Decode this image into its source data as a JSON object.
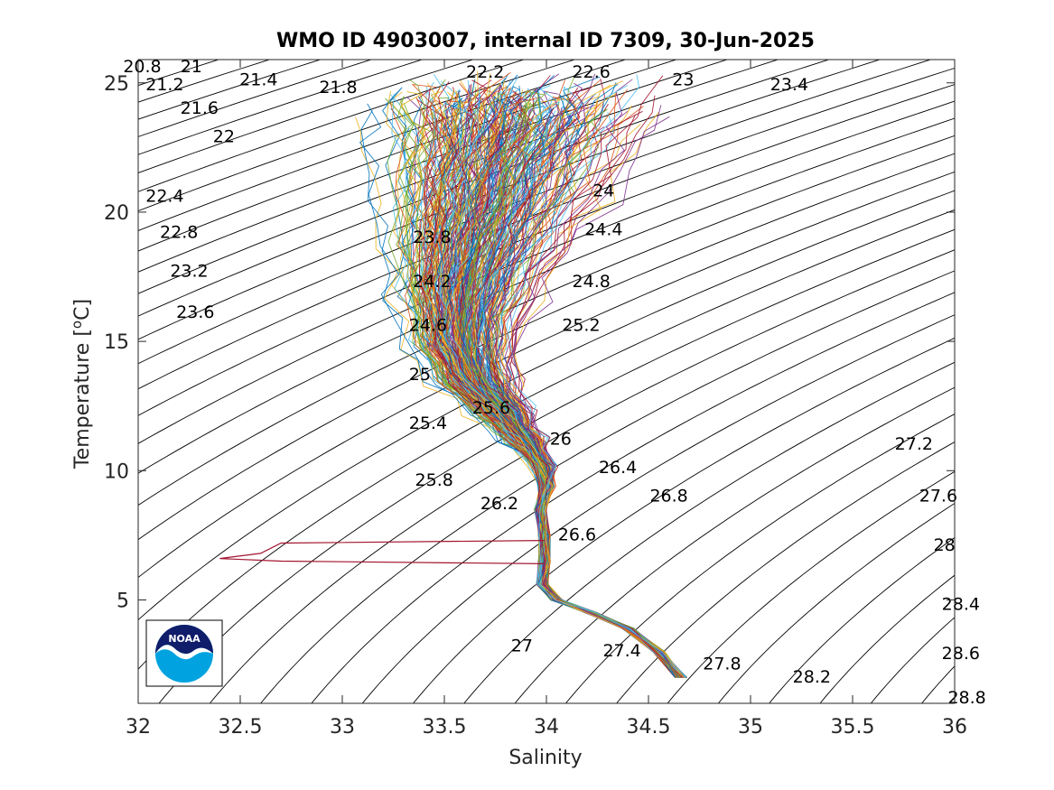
{
  "chart_data": {
    "type": "scatter",
    "title": "WMO ID 4903007, internal ID 7309, 30-Jun-2025",
    "xlabel": "Salinity",
    "ylabel": "Temperature [°C]",
    "ylabel_prefix": "Temperature [",
    "ylabel_sup": "o",
    "ylabel_suffix": "C]",
    "xlim": [
      32,
      36
    ],
    "ylim": [
      1,
      25.9
    ],
    "xticks": [
      32,
      32.5,
      33,
      33.5,
      34,
      34.5,
      35,
      35.5,
      36
    ],
    "yticks": [
      5,
      10,
      15,
      20,
      25
    ],
    "xtick_labels": [
      "32",
      "32.5",
      "33",
      "33.5",
      "34",
      "34.5",
      "35",
      "35.5",
      "36"
    ],
    "ytick_labels": [
      "5",
      "10",
      "15",
      "20",
      "25"
    ],
    "grid": false,
    "density_contours": {
      "values": [
        20.8,
        21,
        21.2,
        21.4,
        21.6,
        21.8,
        22,
        22.2,
        22.4,
        22.6,
        22.8,
        23,
        23.2,
        23.4,
        23.6,
        23.8,
        24,
        24.2,
        24.4,
        24.6,
        24.8,
        25,
        25.2,
        25.4,
        25.6,
        25.8,
        26,
        26.2,
        26.4,
        26.6,
        26.8,
        27,
        27.2,
        27.4,
        27.6,
        27.8,
        28,
        28.2,
        28.4,
        28.6,
        28.8
      ],
      "labels": [
        {
          "text": "20.8",
          "s": 32.02,
          "t": 25.6
        },
        {
          "text": "21",
          "s": 32.26,
          "t": 25.6
        },
        {
          "text": "21.2",
          "s": 32.13,
          "t": 24.9
        },
        {
          "text": "21.4",
          "s": 32.59,
          "t": 25.1
        },
        {
          "text": "21.6",
          "s": 32.3,
          "t": 24.0
        },
        {
          "text": "21.8",
          "s": 32.98,
          "t": 24.8
        },
        {
          "text": "22",
          "s": 32.42,
          "t": 22.9
        },
        {
          "text": "22.2",
          "s": 33.7,
          "t": 25.4
        },
        {
          "text": "22.4",
          "s": 32.13,
          "t": 20.6
        },
        {
          "text": "22.6",
          "s": 34.22,
          "t": 25.4
        },
        {
          "text": "22.8",
          "s": 32.2,
          "t": 19.2
        },
        {
          "text": "23",
          "s": 34.67,
          "t": 25.1
        },
        {
          "text": "23.2",
          "s": 32.25,
          "t": 17.7
        },
        {
          "text": "23.4",
          "s": 35.19,
          "t": 24.9
        },
        {
          "text": "23.6",
          "s": 32.28,
          "t": 16.1
        },
        {
          "text": "23.8",
          "s": 33.44,
          "t": 19.0
        },
        {
          "text": "24",
          "s": 34.28,
          "t": 20.8
        },
        {
          "text": "24.2",
          "s": 33.44,
          "t": 17.3
        },
        {
          "text": "24.4",
          "s": 34.28,
          "t": 19.3
        },
        {
          "text": "24.6",
          "s": 33.42,
          "t": 15.6
        },
        {
          "text": "24.8",
          "s": 34.22,
          "t": 17.3
        },
        {
          "text": "25",
          "s": 33.38,
          "t": 13.7
        },
        {
          "text": "25.2",
          "s": 34.17,
          "t": 15.6
        },
        {
          "text": "25.4",
          "s": 33.42,
          "t": 11.8
        },
        {
          "text": "25.6",
          "s": 33.73,
          "t": 12.4
        },
        {
          "text": "25.8",
          "s": 33.45,
          "t": 9.6
        },
        {
          "text": "26",
          "s": 34.07,
          "t": 11.2
        },
        {
          "text": "26.2",
          "s": 33.77,
          "t": 8.7
        },
        {
          "text": "26.4",
          "s": 34.35,
          "t": 10.1
        },
        {
          "text": "26.6",
          "s": 34.15,
          "t": 7.5
        },
        {
          "text": "26.8",
          "s": 34.6,
          "t": 9.0
        },
        {
          "text": "27",
          "s": 33.88,
          "t": 3.2
        },
        {
          "text": "27.2",
          "s": 35.8,
          "t": 11.0
        },
        {
          "text": "27.4",
          "s": 34.37,
          "t": 3.0
        },
        {
          "text": "27.6",
          "s": 35.92,
          "t": 9.0
        },
        {
          "text": "27.8",
          "s": 34.86,
          "t": 2.5
        },
        {
          "text": "28",
          "s": 35.95,
          "t": 7.1
        },
        {
          "text": "28.2",
          "s": 35.3,
          "t": 2.0
        },
        {
          "text": "28.4",
          "s": 36.03,
          "t": 4.8
        },
        {
          "text": "28.6",
          "s": 36.03,
          "t": 2.9
        },
        {
          "text": "28.8",
          "s": 36.06,
          "t": 1.2
        }
      ]
    },
    "profiles": {
      "description_note": "",
      "count_visible": 300,
      "deep_end": {
        "s": 34.66,
        "t": 2.0
      },
      "path": [
        {
          "s": 34.66,
          "t": 2.0
        },
        {
          "s": 34.55,
          "t": 3.0
        },
        {
          "s": 34.4,
          "t": 3.9
        },
        {
          "s": 34.22,
          "t": 4.5
        },
        {
          "s": 34.05,
          "t": 5.0
        },
        {
          "s": 33.98,
          "t": 5.6
        },
        {
          "s": 33.99,
          "t": 6.5
        },
        {
          "s": 33.99,
          "t": 7.5
        },
        {
          "s": 33.97,
          "t": 8.5
        },
        {
          "s": 34.0,
          "t": 9.4
        },
        {
          "s": 33.98,
          "t": 10.2
        },
        {
          "s": 33.88,
          "t": 11.2
        },
        {
          "s": 33.76,
          "t": 12.3
        },
        {
          "s": 33.62,
          "t": 13.5
        },
        {
          "s": 33.55,
          "t": 15.0
        },
        {
          "s": 33.55,
          "t": 17.0
        },
        {
          "s": 33.6,
          "t": 19.0
        },
        {
          "s": 33.66,
          "t": 21.0
        },
        {
          "s": 33.72,
          "t": 23.0
        },
        {
          "s": 33.76,
          "t": 24.5
        }
      ],
      "spike": [
        {
          "s": 33.99,
          "t": 7.3
        },
        {
          "s": 32.7,
          "t": 7.2
        },
        {
          "s": 32.6,
          "t": 6.8
        },
        {
          "s": 32.4,
          "t": 6.6
        },
        {
          "s": 32.7,
          "t": 6.5
        },
        {
          "s": 33.99,
          "t": 6.4
        }
      ]
    },
    "logo": {
      "text": "NOAA",
      "colors": {
        "navy": "#0f1d6a",
        "cyan": "#00a3e0",
        "white": "#ffffff"
      }
    }
  },
  "colors": {
    "contour": "#000000",
    "axis": "#262626",
    "series_palette": [
      "#0072bd",
      "#d95319",
      "#edb120",
      "#7e2f8e",
      "#77ac30",
      "#4dbeee",
      "#a2142f"
    ]
  }
}
